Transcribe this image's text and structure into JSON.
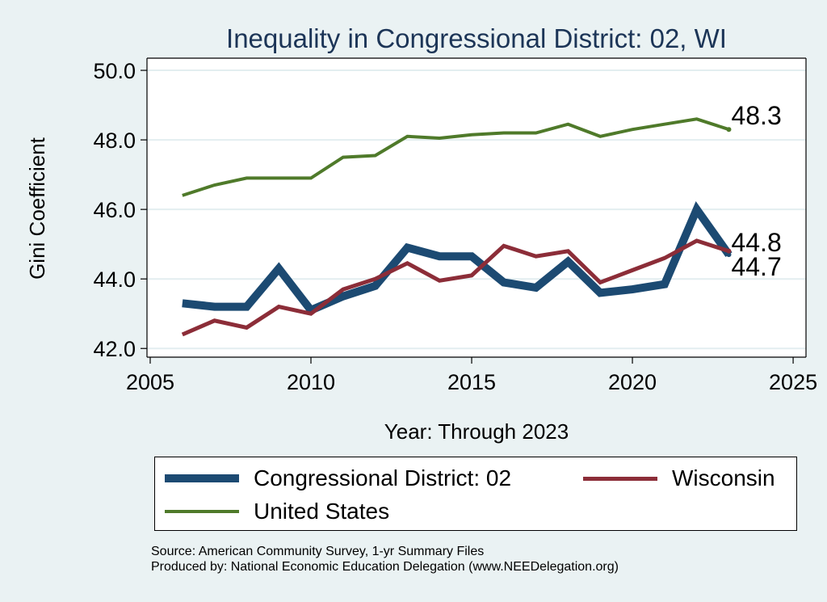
{
  "chart_data": {
    "type": "line",
    "title": "Inequality in Congressional District:  02, WI",
    "xlabel": "Year: Through 2023",
    "ylabel": "Gini Coefficient",
    "xlim": [
      2004.9,
      2025.4
    ],
    "ylim": [
      41.75,
      50.35
    ],
    "xticks": [
      2005,
      2010,
      2015,
      2020,
      2025
    ],
    "yticks": [
      42.0,
      44.0,
      46.0,
      48.0,
      50.0
    ],
    "xtick_labels": [
      "2005",
      "2010",
      "2015",
      "2020",
      "2025"
    ],
    "ytick_labels": [
      "42.0",
      "44.0",
      "46.0",
      "48.0",
      "50.0"
    ],
    "grid": "horizontal",
    "legend_position": "bottom",
    "series": [
      {
        "name": "Congressional District:  02",
        "color": "#1c4a72",
        "x": [
          2006,
          2007,
          2008,
          2009,
          2010,
          2011,
          2012,
          2013,
          2014,
          2015,
          2016,
          2017,
          2018,
          2019,
          2020,
          2021,
          2022,
          2023
        ],
        "y": [
          43.3,
          43.2,
          43.2,
          44.3,
          43.1,
          43.5,
          43.8,
          44.9,
          44.65,
          44.65,
          43.9,
          43.75,
          44.5,
          43.6,
          43.7,
          43.85,
          46.0,
          44.7
        ],
        "end_label": "44.7"
      },
      {
        "name": "Wisconsin",
        "color": "#8c2d38",
        "x": [
          2006,
          2007,
          2008,
          2009,
          2010,
          2011,
          2012,
          2013,
          2014,
          2015,
          2016,
          2017,
          2018,
          2019,
          2020,
          2021,
          2022,
          2023
        ],
        "y": [
          42.4,
          42.8,
          42.6,
          43.2,
          43.0,
          43.7,
          44.0,
          44.45,
          43.95,
          44.1,
          44.95,
          44.65,
          44.8,
          43.9,
          44.25,
          44.6,
          45.1,
          44.8
        ],
        "end_label": "44.8"
      },
      {
        "name": "United States",
        "color": "#4f7a2a",
        "x": [
          2006,
          2007,
          2008,
          2009,
          2010,
          2011,
          2012,
          2013,
          2014,
          2015,
          2016,
          2017,
          2018,
          2019,
          2020,
          2021,
          2022,
          2023
        ],
        "y": [
          46.4,
          46.7,
          46.9,
          46.9,
          46.9,
          47.5,
          47.55,
          48.1,
          48.05,
          48.15,
          48.2,
          48.2,
          48.45,
          48.1,
          48.3,
          48.45,
          48.6,
          48.3
        ],
        "end_label": "48.3"
      }
    ]
  },
  "legend": {
    "items": [
      {
        "label": "Congressional District:  02",
        "color": "#1c4a72"
      },
      {
        "label": "Wisconsin",
        "color": "#8c2d38"
      },
      {
        "label": "United States",
        "color": "#4f7a2a"
      }
    ]
  },
  "source_note": {
    "line1": "Source: American Community Survey, 1-yr Summary Files",
    "line2": "Produced by: National Economic Education Delegation (www.NEEDelegation.org)"
  },
  "colors": {
    "background": "#eaf2f3",
    "plot_background": "#ffffff",
    "title": "#1c3557",
    "gridline": "#e3eef0"
  }
}
